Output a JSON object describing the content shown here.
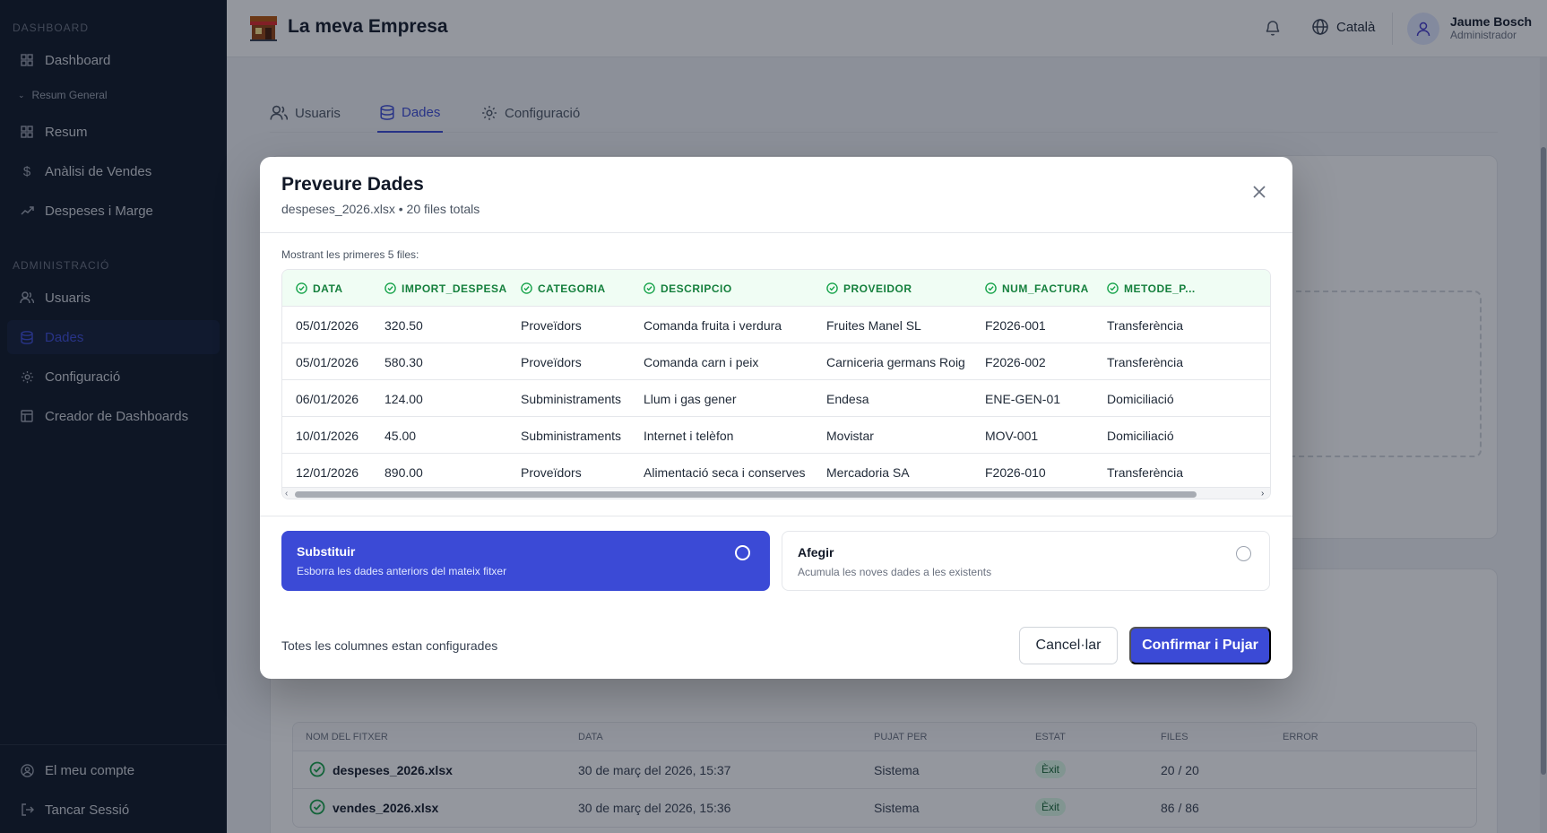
{
  "sidebar": {
    "section_dashboard": "DASHBOARD",
    "dashboard": "Dashboard",
    "subgroup": "Resum General",
    "resum": "Resum",
    "vendes": "Anàlisi de Vendes",
    "despeses": "Despeses i Marge",
    "section_admin": "ADMINISTRACIÓ",
    "usuaris": "Usuaris",
    "dades": "Dades",
    "configuracio": "Configuració",
    "creador": "Creador de Dashboards",
    "compte": "El meu compte",
    "logout": "Tancar Sessió"
  },
  "header": {
    "brand": "La meva Empresa",
    "language": "Català",
    "user_name": "Jaume Bosch",
    "user_role": "Administrador"
  },
  "tabs": {
    "usuaris": "Usuaris",
    "dades": "Dades",
    "configuracio": "Configuració"
  },
  "history": {
    "col_nom": "NOM DEL FITXER",
    "col_data": "DATA",
    "col_pujat": "PUJAT PER",
    "col_estat": "ESTAT",
    "col_files": "FILES",
    "col_error": "ERROR",
    "rows": [
      {
        "name": "despeses_2026.xlsx",
        "date": "30 de març del 2026, 15:37",
        "by": "Sistema",
        "status": "Èxit",
        "rows": "20 / 20"
      },
      {
        "name": "vendes_2026.xlsx",
        "date": "30 de març del 2026, 15:36",
        "by": "Sistema",
        "status": "Èxit",
        "rows": "86 / 86"
      }
    ]
  },
  "modal": {
    "title": "Preveure Dades",
    "subtitle": "despeses_2026.xlsx • 20 files totals",
    "hint": "Mostrant les primeres 5 files:",
    "columns": [
      "DATA",
      "IMPORT_DESPESA",
      "CATEGORIA",
      "DESCRIPCIO",
      "PROVEIDOR",
      "NUM_FACTURA",
      "METODE_P..."
    ],
    "rows": [
      [
        "05/01/2026",
        "320.50",
        "Proveïdors",
        "Comanda fruita i verdura",
        "Fruites Manel SL",
        "F2026-001",
        "Transferència"
      ],
      [
        "05/01/2026",
        "580.30",
        "Proveïdors",
        "Comanda carn i peix",
        "Carniceria germans Roig",
        "F2026-002",
        "Transferència"
      ],
      [
        "06/01/2026",
        "124.00",
        "Subministraments",
        "Llum i gas gener",
        "Endesa",
        "ENE-GEN-01",
        "Domiciliació"
      ],
      [
        "10/01/2026",
        "45.00",
        "Subministraments",
        "Internet i telèfon",
        "Movistar",
        "MOV-001",
        "Domiciliació"
      ],
      [
        "12/01/2026",
        "890.00",
        "Proveïdors",
        "Alimentació seca i conserves",
        "Mercadoria SA",
        "F2026-010",
        "Transferència"
      ]
    ],
    "option_replace_title": "Substituir",
    "option_replace_desc": "Esborra les dades anteriors del mateix fitxer",
    "option_add_title": "Afegir",
    "option_add_desc": "Acumula les noves dades a les existents",
    "footer_text": "Totes les columnes estan configurades",
    "cancel": "Cancel·lar",
    "confirm": "Confirmar i Pujar"
  }
}
